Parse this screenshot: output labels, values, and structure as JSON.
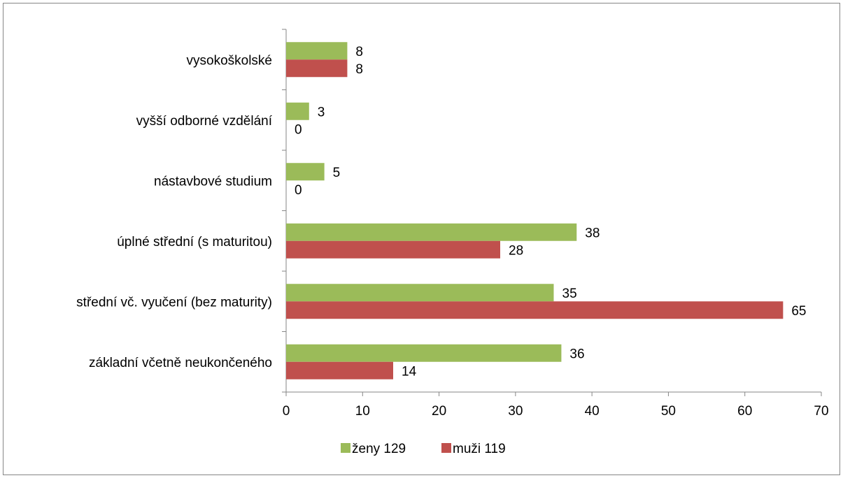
{
  "chart_data": {
    "type": "bar",
    "orientation": "horizontal",
    "categories": [
      "základní včetně neukončeného",
      "střední vč. vyučení (bez maturity)",
      "úplné střední (s maturitou)",
      "nástavbové studium",
      "vyšší odborné vzdělání",
      "vysokoškolské"
    ],
    "series": [
      {
        "name": "ženy 129",
        "color": "#9BBB59",
        "values": [
          36,
          35,
          38,
          5,
          3,
          8
        ]
      },
      {
        "name": "muži 119",
        "color": "#C0504D",
        "values": [
          14,
          65,
          28,
          0,
          0,
          8
        ]
      }
    ],
    "xlim": [
      0,
      70
    ],
    "xticks": [
      0,
      10,
      20,
      30,
      40,
      50,
      60,
      70
    ],
    "title": "",
    "xlabel": "",
    "ylabel": "",
    "grid": false,
    "legend_position": "bottom",
    "data_labels": true
  }
}
